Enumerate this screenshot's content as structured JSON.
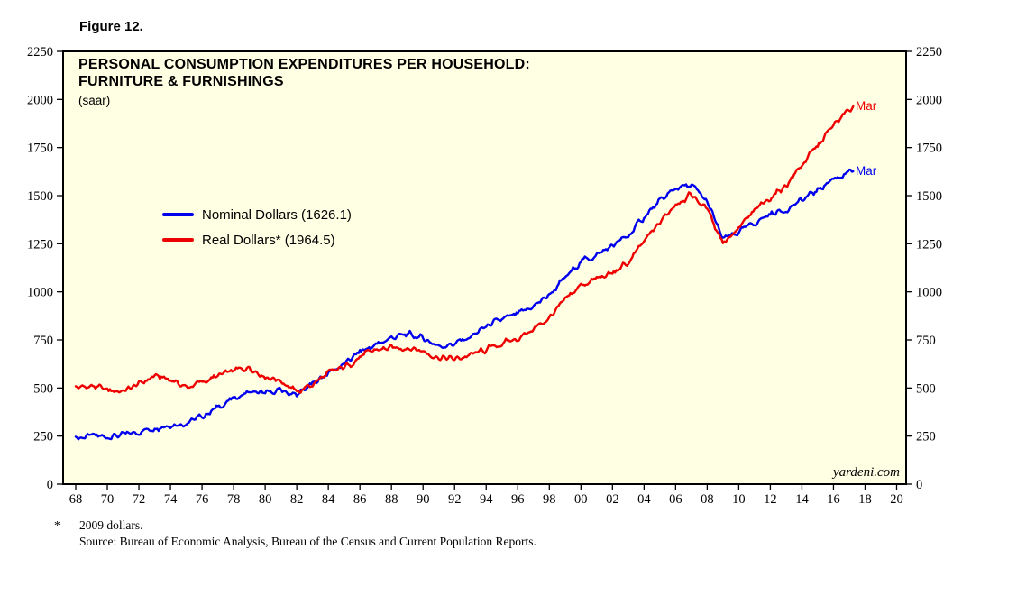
{
  "figure_label": "Figure 12.",
  "chart": {
    "title_line1": "PERSONAL CONSUMPTION EXPENDITURES PER HOUSEHOLD:",
    "title_line2": "FURNITURE & FURNISHINGS",
    "subtitle": "(saar)",
    "watermark": "yardeni.com",
    "plot_bg": "#FFFFE3",
    "end_label": "Mar"
  },
  "legend": [
    {
      "label": "Nominal Dollars (1626.1)",
      "color": "#0000EE"
    },
    {
      "label": "Real Dollars* (1964.5)",
      "color": "#EE0000"
    }
  ],
  "footnotes": {
    "asterisk": "*",
    "line1": "2009 dollars.",
    "line2": "Source: Bureau of Economic Analysis, Bureau of the Census and Current Population Reports."
  },
  "chart_data": {
    "type": "line",
    "title": "PERSONAL CONSUMPTION EXPENDITURES PER HOUSEHOLD: FURNITURE & FURNISHINGS (saar)",
    "ylim": [
      0,
      2250
    ],
    "yticks": [
      0,
      250,
      500,
      750,
      1000,
      1250,
      1500,
      1750,
      2000,
      2250
    ],
    "xlim": [
      1967.2,
      2020.6
    ],
    "xticks": [
      "68",
      "70",
      "72",
      "74",
      "76",
      "78",
      "80",
      "82",
      "84",
      "86",
      "88",
      "90",
      "92",
      "94",
      "96",
      "98",
      "00",
      "02",
      "04",
      "06",
      "08",
      "10",
      "12",
      "14",
      "16",
      "18",
      "20"
    ],
    "xtick_years": [
      1968,
      1970,
      1972,
      1974,
      1976,
      1978,
      1980,
      1982,
      1984,
      1986,
      1988,
      1990,
      1992,
      1994,
      1996,
      1998,
      2000,
      2002,
      2004,
      2006,
      2008,
      2010,
      2012,
      2014,
      2016,
      2018,
      2020
    ],
    "start_year": 1968,
    "end_x": 2017.25,
    "end_label": "Mar",
    "grid": false,
    "legend_position": "upper-left-inside",
    "series": [
      {
        "name": "Nominal Dollars",
        "color": "#0000EE",
        "end_value": 1626.1,
        "values": [
          240,
          250,
          248,
          255,
          272,
          295,
          310,
          318,
          352,
          400,
          445,
          480,
          470,
          488,
          462,
          520,
          580,
          622,
          690,
          722,
          762,
          778,
          760,
          718,
          730,
          765,
          820,
          855,
          882,
          925,
          985,
          1070,
          1160,
          1190,
          1240,
          1290,
          1390,
          1468,
          1540,
          1552,
          1468,
          1272,
          1310,
          1358,
          1405,
          1428,
          1475,
          1530,
          1590
        ]
      },
      {
        "name": "Real Dollars (2009 dollars)",
        "color": "#EE0000",
        "end_value": 1964.5,
        "values": [
          500,
          510,
          490,
          482,
          520,
          562,
          545,
          502,
          530,
          560,
          590,
          608,
          560,
          540,
          478,
          520,
          575,
          608,
          660,
          700,
          705,
          712,
          692,
          658,
          650,
          670,
          700,
          730,
          758,
          805,
          865,
          955,
          1035,
          1068,
          1095,
          1150,
          1260,
          1360,
          1460,
          1505,
          1430,
          1258,
          1330,
          1420,
          1490,
          1555,
          1660,
          1760,
          1865
        ]
      }
    ]
  }
}
